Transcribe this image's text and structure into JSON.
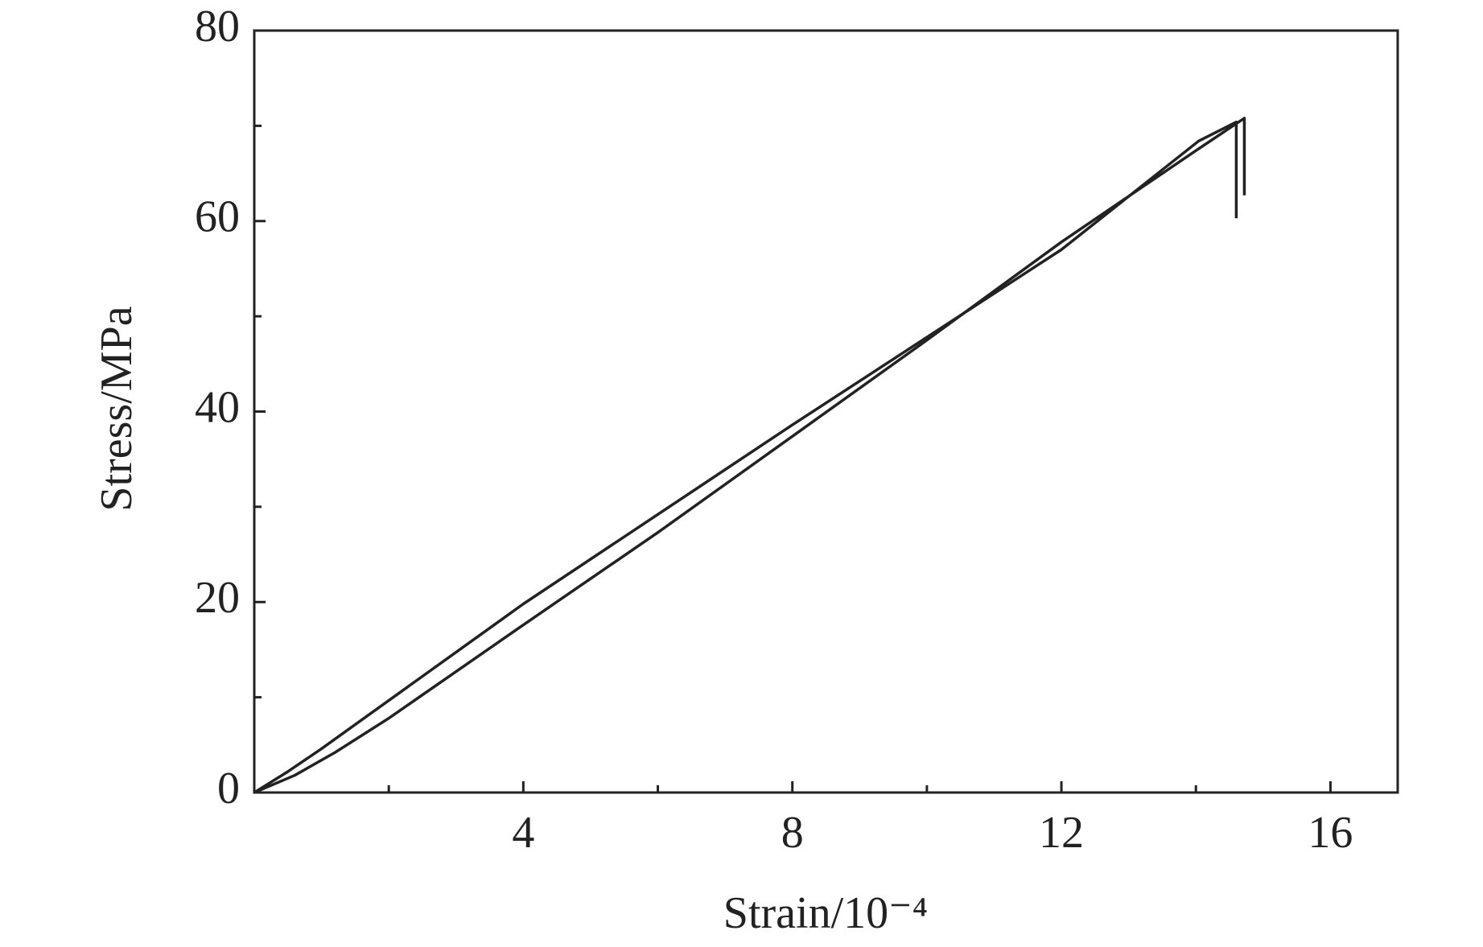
{
  "chart_data": {
    "type": "line",
    "xlabel": "Strain/10⁻⁴",
    "ylabel": "Stress/MPa",
    "xlim": [
      0,
      17
    ],
    "ylim": [
      0,
      80
    ],
    "xticks": [
      4,
      8,
      12,
      16
    ],
    "yticks": [
      0,
      20,
      40,
      60,
      80
    ],
    "xminorticks": [
      2,
      6,
      10,
      14
    ],
    "yminorticks": [
      10,
      30,
      50,
      70
    ],
    "series": [
      {
        "color": "#222222",
        "x": [
          0,
          0.5,
          1,
          4,
          8,
          12,
          14.04,
          14.6,
          14.6
        ],
        "values": [
          0,
          2.2,
          4.6,
          19.8,
          38.6,
          57.0,
          68.4,
          70.4,
          60.3
        ]
      },
      {
        "color": "#222222",
        "x": [
          0,
          0.6,
          1.2,
          2,
          3,
          4,
          6,
          8,
          10,
          12,
          14,
          14.72,
          14.72
        ],
        "values": [
          0,
          1.8,
          4.2,
          7.8,
          12.7,
          17.6,
          27.3,
          37.4,
          47.5,
          57.8,
          67.4,
          70.8,
          62.7
        ]
      }
    ]
  }
}
